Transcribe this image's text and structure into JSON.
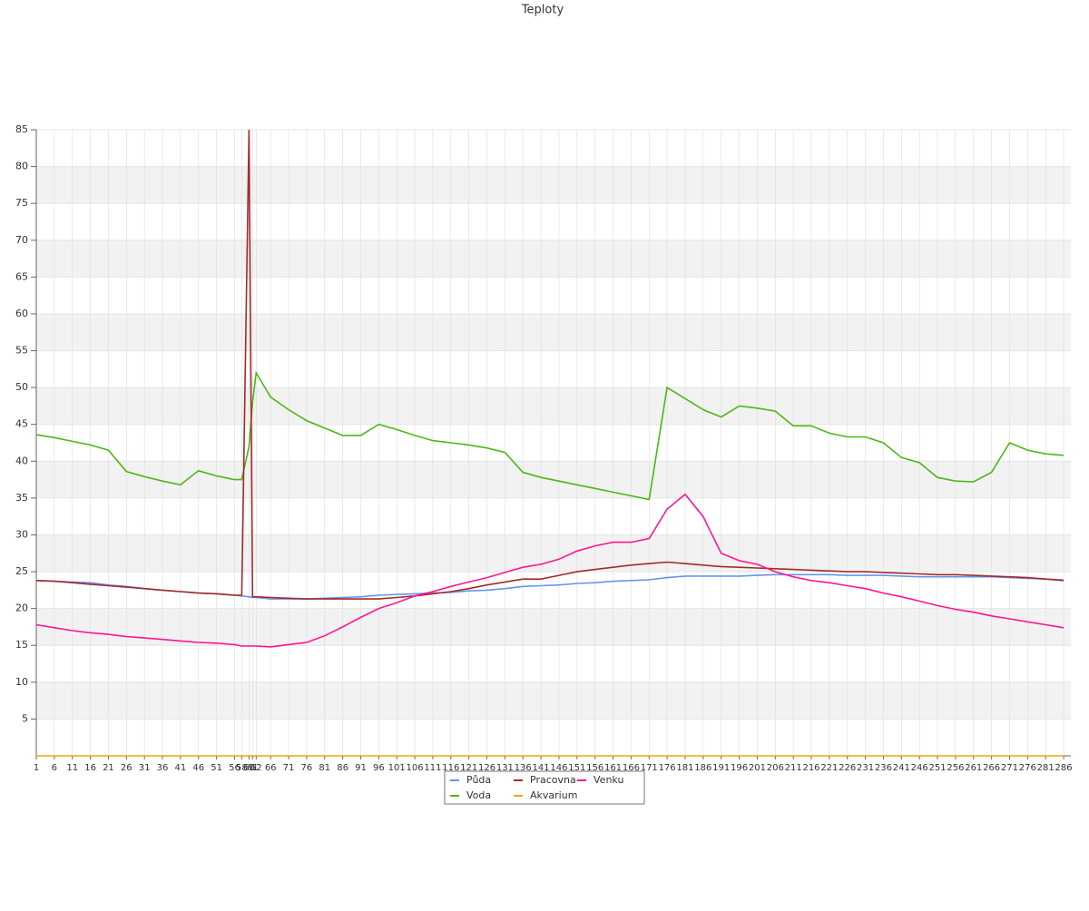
{
  "chart_data": {
    "type": "line",
    "title": "Teploty",
    "x": [
      1,
      6,
      11,
      16,
      21,
      26,
      31,
      36,
      41,
      46,
      51,
      56,
      58,
      60,
      61,
      62,
      66,
      71,
      76,
      81,
      86,
      91,
      96,
      101,
      106,
      111,
      116,
      121,
      126,
      131,
      136,
      141,
      146,
      151,
      156,
      161,
      166,
      171,
      176,
      181,
      186,
      191,
      196,
      201,
      206,
      211,
      216,
      221,
      226,
      231,
      236,
      241,
      246,
      251,
      256,
      261,
      266,
      271,
      276,
      281,
      286
    ],
    "xlim": [
      1,
      288
    ],
    "ylim": [
      0,
      85
    ],
    "yticks": [
      5,
      10,
      15,
      20,
      25,
      30,
      35,
      40,
      45,
      50,
      55,
      60,
      65,
      70,
      75,
      80,
      85
    ],
    "grid": true,
    "legend": "bottom",
    "series": [
      {
        "name": "Půda",
        "color": "#6495ed",
        "values": [
          23.8,
          23.7,
          23.6,
          23.5,
          23.2,
          23.0,
          22.7,
          22.5,
          22.3,
          22.1,
          22.0,
          21.8,
          21.7,
          21.6,
          21.5,
          21.5,
          21.3,
          21.3,
          21.3,
          21.4,
          21.5,
          21.6,
          21.8,
          21.9,
          22.0,
          22.1,
          22.2,
          22.4,
          22.5,
          22.7,
          23.0,
          23.1,
          23.2,
          23.4,
          23.5,
          23.7,
          23.8,
          23.9,
          24.2,
          24.4,
          24.4,
          24.4,
          24.4,
          24.5,
          24.6,
          24.6,
          24.6,
          24.6,
          24.5,
          24.5,
          24.5,
          24.4,
          24.3,
          24.3,
          24.3,
          24.3,
          24.3,
          24.2,
          24.1,
          24.0,
          23.9
        ]
      },
      {
        "name": "Voda",
        "color": "#4cb814",
        "values": [
          43.6,
          43.2,
          42.7,
          42.2,
          41.5,
          38.6,
          37.9,
          37.3,
          36.8,
          38.7,
          38.0,
          37.5,
          37.5,
          42,
          48,
          52,
          48.7,
          47,
          45.5,
          44.5,
          43.5,
          43.5,
          45,
          44.3,
          43.5,
          42.8,
          42.5,
          42.2,
          41.8,
          41.2,
          38.5,
          37.8,
          37.3,
          36.8,
          36.3,
          35.8,
          35.3,
          34.8,
          50,
          48.5,
          47,
          46,
          47.5,
          47.2,
          46.8,
          44.8,
          44.8,
          43.8,
          43.3,
          43.3,
          42.5,
          40.5,
          39.8,
          37.8,
          37.3,
          37.2,
          38.5,
          42.5,
          41.5,
          41.0,
          40.8
        ]
      },
      {
        "name": "Pracovna",
        "color": "#a52a2a",
        "values": [
          23.8,
          23.7,
          23.5,
          23.3,
          23.1,
          22.9,
          22.7,
          22.5,
          22.3,
          22.1,
          22.0,
          21.8,
          21.8,
          85,
          21.6,
          21.6,
          21.5,
          21.4,
          21.3,
          21.3,
          21.3,
          21.3,
          21.3,
          21.5,
          21.7,
          22.0,
          22.3,
          22.7,
          23.2,
          23.6,
          24.0,
          24.0,
          24.5,
          25.0,
          25.3,
          25.6,
          25.9,
          26.1,
          26.3,
          26.1,
          25.9,
          25.7,
          25.6,
          25.5,
          25.4,
          25.3,
          25.2,
          25.1,
          25.0,
          25.0,
          24.9,
          24.8,
          24.7,
          24.6,
          24.6,
          24.5,
          24.4,
          24.3,
          24.2,
          24.0,
          23.8
        ]
      },
      {
        "name": "Akvarium",
        "color": "#f0a30a",
        "values": [
          0,
          0,
          0,
          0,
          0,
          0,
          0,
          0,
          0,
          0,
          0,
          0,
          0,
          0,
          0,
          0,
          0,
          0,
          0,
          0,
          0,
          0,
          0,
          0,
          0,
          0,
          0,
          0,
          0,
          0,
          0,
          0,
          0,
          0,
          0,
          0,
          0,
          0,
          0,
          0,
          0,
          0,
          0,
          0,
          0,
          0,
          0,
          0,
          0,
          0,
          0,
          0,
          0,
          0,
          0,
          0,
          0,
          0,
          0,
          0,
          0
        ]
      },
      {
        "name": "Venku",
        "color": "#ff1493",
        "values": [
          17.8,
          17.4,
          17.0,
          16.7,
          16.5,
          16.2,
          16.0,
          15.8,
          15.6,
          15.4,
          15.3,
          15.1,
          14.9,
          14.9,
          14.9,
          14.9,
          14.8,
          15.1,
          15.4,
          16.3,
          17.5,
          18.8,
          20.0,
          20.8,
          21.7,
          22.3,
          23.0,
          23.6,
          24.2,
          24.9,
          25.6,
          26.0,
          26.7,
          27.8,
          28.5,
          29.0,
          29.0,
          29.5,
          33.5,
          35.5,
          32.5,
          27.5,
          26.5,
          26.0,
          25.0,
          24.3,
          23.8,
          23.5,
          23.1,
          22.7,
          22.1,
          21.6,
          21.0,
          20.4,
          19.9,
          19.5,
          19.0,
          18.6,
          18.2,
          17.8,
          17.4
        ]
      }
    ]
  }
}
